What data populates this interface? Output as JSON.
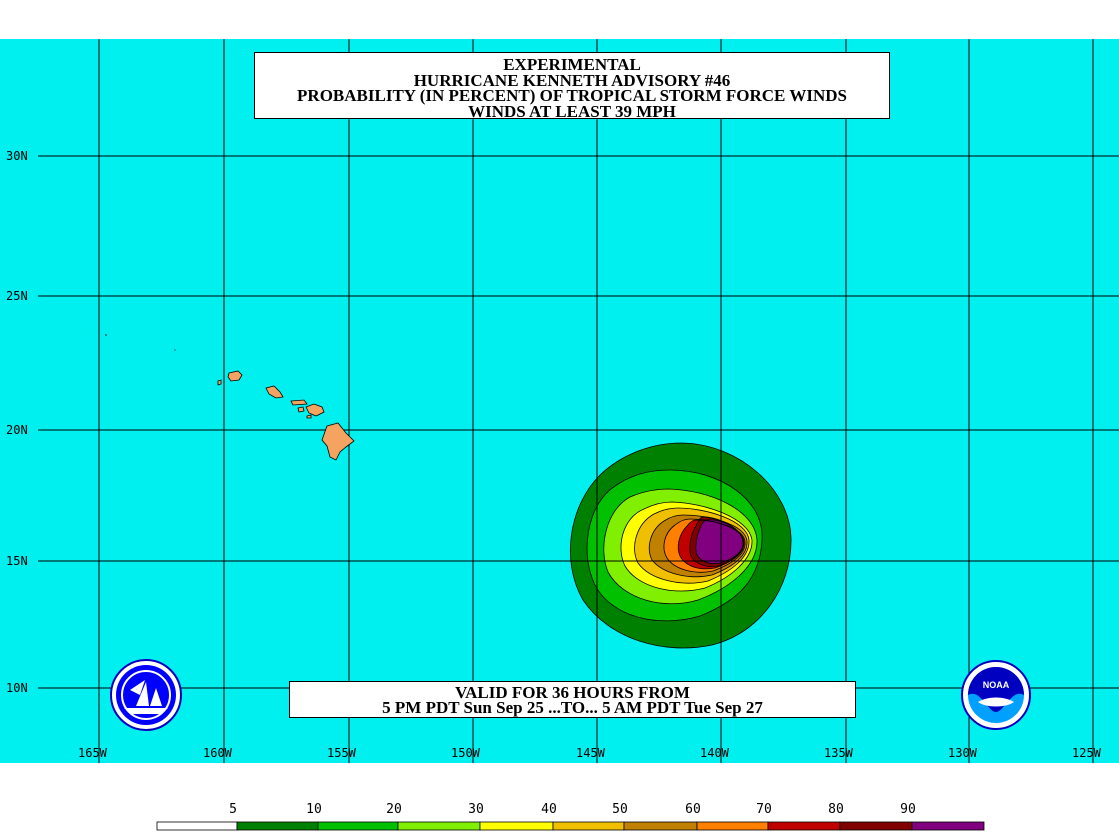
{
  "title": {
    "line1": "EXPERIMENTAL",
    "line2": "HURRICANE KENNETH ADVISORY #46",
    "line3": "PROBABILITY (IN PERCENT) OF TROPICAL STORM FORCE WINDS",
    "line4": "WINDS AT LEAST 39 MPH"
  },
  "valid": {
    "line1": "VALID FOR 36 HOURS FROM",
    "line2": "5 PM PDT Sun Sep 25 ...TO... 5 AM PDT Tue Sep 27"
  },
  "longitude_labels": [
    "165W",
    "160W",
    "155W",
    "150W",
    "145W",
    "140W",
    "135W",
    "130W",
    "125W"
  ],
  "latitude_labels": [
    "30N",
    "25N",
    "20N",
    "15N",
    "10N"
  ],
  "colors": {
    "ocean": "#00f0f0",
    "land": "#f4a460",
    "grid": "#000000"
  },
  "legend": {
    "values": [
      "5",
      "10",
      "20",
      "30",
      "40",
      "50",
      "60",
      "70",
      "80",
      "90"
    ],
    "colors": [
      "#ffffff",
      "#008000",
      "#00c000",
      "#80f000",
      "#ffff00",
      "#f0c000",
      "#c08000",
      "#ff8000",
      "#c00000",
      "#800000",
      "#800080"
    ]
  }
}
